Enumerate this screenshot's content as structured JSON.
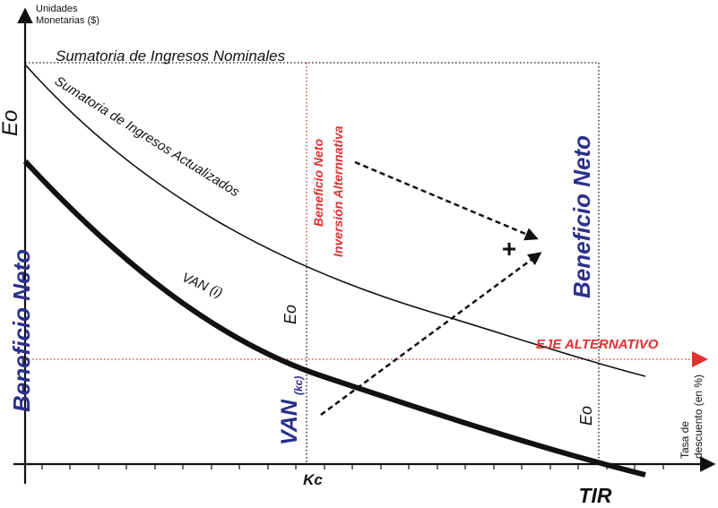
{
  "axes": {
    "y_title_line1": "Unidades",
    "y_title_line2": "Monetarias ($)",
    "x_title_line1": "Tasa de",
    "x_title_line2": "descuento (en %)"
  },
  "labels": {
    "nominal": "Sumatoria de Ingresos Nominales",
    "actualizados": "Sumatoria de Ingresos Actualizados",
    "van": "VAN (i)",
    "eo": "Eo",
    "beneficio_neto": "Beneficio Neto",
    "beneficio_alt_line1": "Beneficio Neto",
    "beneficio_alt_line2": "Inversión Alternnativa",
    "eje_alternativo": "EJE ALTERNATIVO",
    "van_kc_main": "VAN",
    "van_kc_sub": "(kc)",
    "kc": "Kc",
    "tir": "TIR",
    "plus": "+"
  },
  "colors": {
    "navy": "#2b2f8c",
    "red": "#e03030",
    "black": "#111111"
  }
}
